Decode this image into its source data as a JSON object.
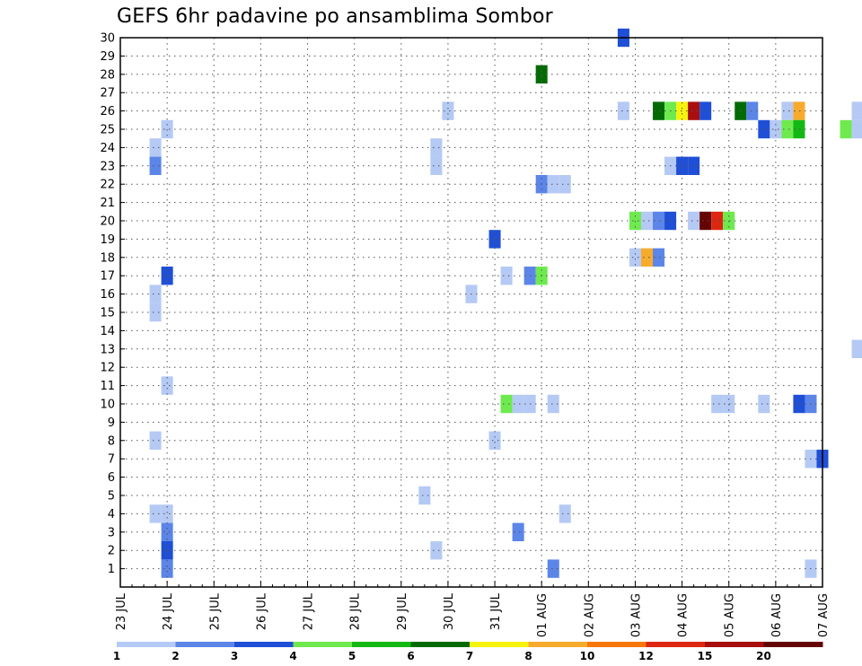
{
  "chart_data": {
    "type": "heatmap",
    "title": "GEFS 6hr padavine po ansamblima Sombor",
    "xlabel": "",
    "ylabel": "",
    "y_ticks": [
      1,
      2,
      3,
      4,
      5,
      6,
      7,
      8,
      9,
      10,
      11,
      12,
      13,
      14,
      15,
      16,
      17,
      18,
      19,
      20,
      21,
      22,
      23,
      24,
      25,
      26,
      27,
      28,
      29,
      30
    ],
    "x_ticks": [
      "23 JUL",
      "24 JUL",
      "25 JUL",
      "26 JUL",
      "27 JUL",
      "28 JUL",
      "29 JUL",
      "30 JUL",
      "31 JUL",
      "01 AUG",
      "02 AUG",
      "03 AUG",
      "04 AUG",
      "05 AUG",
      "06 AUG",
      "07 AUG"
    ],
    "time_step_hours": 6,
    "grid": true,
    "legend_placement": "bottom",
    "legend": {
      "colors": [
        "#b5c9f5",
        "#5c85e8",
        "#1f4fd6",
        "#6eea4e",
        "#14b814",
        "#046b04",
        "#f4f40c",
        "#f7ab2c",
        "#f7770c",
        "#dd2710",
        "#a80e0e",
        "#640404"
      ],
      "labels": [
        "1",
        "2",
        "3",
        "4",
        "5",
        "6",
        "7",
        "8",
        "10",
        "12",
        "15",
        "20"
      ]
    },
    "cells_note_format": "[member, day_index_from_23JUL(fractional, step 0.25 = 6h), precip_mm]",
    "cells": [
      [
        30,
        10.75,
        3
      ],
      [
        28,
        9.0,
        6
      ],
      [
        26,
        7.0,
        1
      ],
      [
        26,
        10.75,
        1
      ],
      [
        26,
        11.5,
        6
      ],
      [
        26,
        11.75,
        4
      ],
      [
        26,
        12.0,
        7
      ],
      [
        26,
        12.25,
        15
      ],
      [
        26,
        12.5,
        3
      ],
      [
        26,
        13.25,
        6
      ],
      [
        26,
        13.5,
        2
      ],
      [
        26,
        14.25,
        1
      ],
      [
        26,
        14.5,
        8
      ],
      [
        26,
        15.75,
        1
      ],
      [
        25,
        1.0,
        1
      ],
      [
        25,
        13.75,
        3
      ],
      [
        25,
        14.0,
        1
      ],
      [
        25,
        14.25,
        4
      ],
      [
        25,
        14.5,
        5
      ],
      [
        25,
        15.5,
        4
      ],
      [
        25,
        15.75,
        1
      ],
      [
        24,
        0.75,
        1
      ],
      [
        24,
        6.75,
        1
      ],
      [
        23,
        0.75,
        2
      ],
      [
        23,
        6.75,
        1
      ],
      [
        23,
        11.75,
        1
      ],
      [
        23,
        12.0,
        3
      ],
      [
        23,
        12.25,
        3
      ],
      [
        22,
        9.0,
        2
      ],
      [
        22,
        9.25,
        1
      ],
      [
        22,
        9.5,
        1
      ],
      [
        20,
        11.0,
        4
      ],
      [
        20,
        11.25,
        1
      ],
      [
        20,
        11.5,
        2
      ],
      [
        20,
        11.75,
        3
      ],
      [
        20,
        12.25,
        1
      ],
      [
        20,
        12.5,
        20
      ],
      [
        20,
        12.75,
        12
      ],
      [
        20,
        13.0,
        4
      ],
      [
        19,
        8.0,
        3
      ],
      [
        18,
        11.0,
        1
      ],
      [
        18,
        11.25,
        8
      ],
      [
        18,
        11.5,
        2
      ],
      [
        17,
        1.0,
        3
      ],
      [
        17,
        8.25,
        1
      ],
      [
        17,
        8.75,
        2
      ],
      [
        17,
        9.0,
        4
      ],
      [
        16,
        0.75,
        1
      ],
      [
        16,
        7.5,
        1
      ],
      [
        15,
        0.75,
        1
      ],
      [
        13,
        15.75,
        1
      ],
      [
        11,
        1.0,
        1
      ],
      [
        10,
        8.25,
        4
      ],
      [
        10,
        8.5,
        1
      ],
      [
        10,
        8.75,
        1
      ],
      [
        10,
        9.25,
        1
      ],
      [
        10,
        12.75,
        1
      ],
      [
        10,
        13.0,
        1
      ],
      [
        10,
        13.75,
        1
      ],
      [
        10,
        14.5,
        3
      ],
      [
        10,
        14.75,
        2
      ],
      [
        8,
        0.75,
        1
      ],
      [
        8,
        8.0,
        1
      ],
      [
        7,
        14.75,
        1
      ],
      [
        7,
        15.0,
        3
      ],
      [
        5,
        6.5,
        1
      ],
      [
        4,
        0.75,
        1
      ],
      [
        4,
        1.0,
        1
      ],
      [
        4,
        9.5,
        1
      ],
      [
        3,
        1.0,
        2
      ],
      [
        3,
        8.5,
        2
      ],
      [
        2,
        1.0,
        3
      ],
      [
        2,
        6.75,
        1
      ],
      [
        1,
        1.0,
        2
      ],
      [
        1,
        9.25,
        2
      ],
      [
        1,
        14.75,
        1
      ]
    ]
  }
}
